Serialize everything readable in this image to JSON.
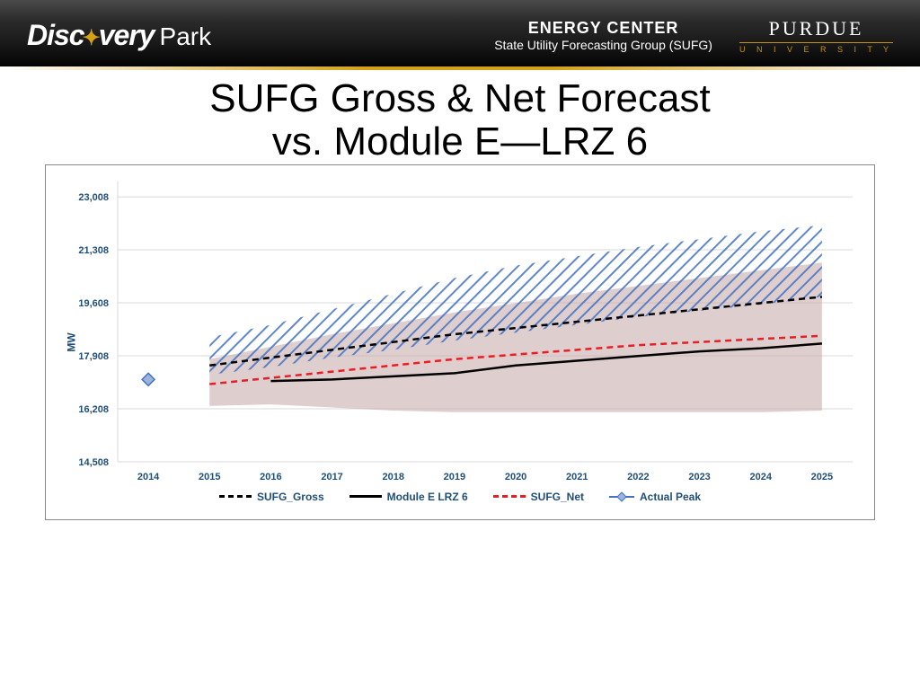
{
  "header": {
    "discovery_left": "Disc",
    "discovery_right": "very",
    "park": "Park",
    "energy_center": "ENERGY CENTER",
    "sufg_sub": "State Utility Forecasting Group (SUFG)",
    "purdue": "PURDUE",
    "university": "U N I V E R S I T Y"
  },
  "title_line1": "SUFG Gross & Net Forecast",
  "title_line2": "vs. Module E—LRZ 6",
  "chart": {
    "type": "line-area",
    "y_axis_label": "MW",
    "ylim": [
      14508,
      23500
    ],
    "y_ticks": [
      14508,
      16208,
      17908,
      19608,
      21308,
      23008
    ],
    "y_tick_labels": [
      "14,508",
      "16,208",
      "17,908",
      "19,608",
      "21,308",
      "23,008"
    ],
    "x_categories": [
      "2014",
      "2015",
      "2016",
      "2017",
      "2018",
      "2019",
      "2020",
      "2021",
      "2022",
      "2023",
      "2024",
      "2025"
    ],
    "series": {
      "gross_band_upper": [
        18500,
        18900,
        19400,
        19900,
        20400,
        20800,
        21100,
        21400,
        21650,
        21900,
        22100
      ],
      "gross_band_lower": [
        17300,
        17550,
        17850,
        18100,
        18400,
        18650,
        18900,
        19150,
        19350,
        19550,
        19800
      ],
      "net_band_upper": [
        17800,
        18200,
        18600,
        18950,
        19300,
        19600,
        19900,
        20150,
        20400,
        20650,
        20900
      ],
      "net_band_lower": [
        16300,
        16350,
        16250,
        16150,
        16100,
        16100,
        16100,
        16100,
        16100,
        16100,
        16150
      ],
      "sufg_gross": [
        17600,
        17850,
        18100,
        18350,
        18600,
        18800,
        19000,
        19200,
        19400,
        19600,
        19800
      ],
      "module_e": [
        null,
        17100,
        17150,
        17250,
        17350,
        17600,
        17750,
        17900,
        18050,
        18150,
        18300
      ],
      "sufg_net": [
        17000,
        17200,
        17400,
        17600,
        17800,
        17950,
        18100,
        18250,
        18350,
        18450,
        18550
      ],
      "actual_peak_x": 2014,
      "actual_peak_y": 17150
    },
    "colors": {
      "grid": "#d9d9d9",
      "axis_text": "#1f4e79",
      "gross_hatch": "#4472c4",
      "net_fill": "#c5a5a5",
      "net_fill_opacity": 0.55,
      "sufg_gross_line": "#000000",
      "module_e_line": "#000000",
      "sufg_net_line": "#ed1c24",
      "actual_peak_marker": "#4472c4",
      "background": "#ffffff"
    },
    "line_styles": {
      "sufg_gross": {
        "width": 2.5,
        "dash": "7,5"
      },
      "module_e": {
        "width": 2.5,
        "dash": "none"
      },
      "sufg_net": {
        "width": 2.5,
        "dash": "7,5"
      }
    },
    "font_sizes": {
      "tick": 11,
      "ylabel": 12,
      "legend": 12
    }
  },
  "legend": {
    "sufg_gross": "SUFG_Gross",
    "module_e": "Module E LRZ 6",
    "sufg_net": "SUFG_Net",
    "actual_peak": "Actual Peak"
  }
}
